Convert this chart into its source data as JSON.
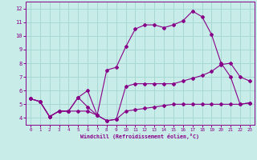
{
  "background_color": "#c8ece8",
  "grid_color": "#a8d8d4",
  "line_color": "#880088",
  "xlabel": "Windchill (Refroidissement éolien,°C)",
  "xlim": [
    -0.5,
    23.5
  ],
  "ylim": [
    3.5,
    12.5
  ],
  "yticks": [
    4,
    5,
    6,
    7,
    8,
    9,
    10,
    11,
    12
  ],
  "xticks": [
    0,
    1,
    2,
    3,
    4,
    5,
    6,
    7,
    8,
    9,
    10,
    11,
    12,
    13,
    14,
    15,
    16,
    17,
    18,
    19,
    20,
    21,
    22,
    23
  ],
  "line1_x": [
    0,
    1,
    2,
    3,
    4,
    5,
    6,
    7,
    8,
    9,
    10,
    11,
    12,
    13,
    14,
    15,
    16,
    17,
    18,
    19,
    20,
    21,
    22,
    23
  ],
  "line1_y": [
    5.4,
    5.2,
    4.1,
    4.5,
    4.5,
    4.5,
    4.5,
    4.2,
    3.8,
    3.9,
    4.5,
    4.6,
    4.7,
    4.8,
    4.9,
    5.0,
    5.0,
    5.0,
    5.0,
    5.0,
    5.0,
    5.0,
    5.0,
    5.1
  ],
  "line2_x": [
    0,
    1,
    2,
    3,
    4,
    5,
    6,
    7,
    8,
    9,
    10,
    11,
    12,
    13,
    14,
    15,
    16,
    17,
    18,
    19,
    20,
    21,
    22,
    23
  ],
  "line2_y": [
    5.4,
    5.2,
    4.1,
    4.5,
    4.5,
    5.5,
    6.0,
    4.2,
    3.8,
    3.9,
    6.3,
    6.5,
    6.5,
    6.5,
    6.5,
    6.5,
    6.7,
    6.9,
    7.1,
    7.4,
    7.9,
    8.0,
    7.0,
    6.7
  ],
  "line3_x": [
    0,
    1,
    2,
    3,
    4,
    5,
    6,
    7,
    8,
    9,
    10,
    11,
    12,
    13,
    14,
    15,
    16,
    17,
    18,
    19,
    20,
    21,
    22,
    23
  ],
  "line3_y": [
    5.4,
    5.2,
    4.1,
    4.5,
    4.5,
    5.5,
    4.8,
    4.2,
    7.5,
    7.7,
    9.2,
    10.5,
    10.8,
    10.8,
    10.6,
    10.8,
    11.1,
    11.8,
    11.4,
    10.1,
    8.0,
    7.0,
    5.0,
    5.1
  ]
}
